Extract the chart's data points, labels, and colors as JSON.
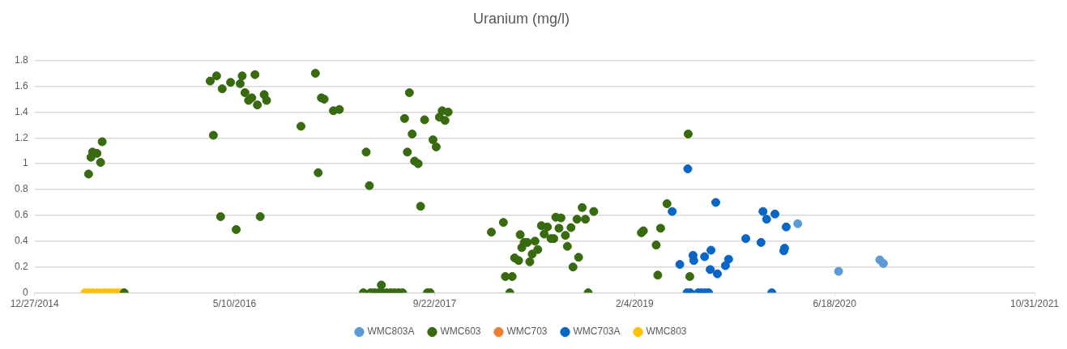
{
  "chart_data": {
    "type": "scatter",
    "title": "Uranium (mg/l)",
    "xlim": [
      "2014-12-27",
      "2021-10-31"
    ],
    "xticks": [
      {
        "value": "2014-12-27",
        "label": "12/27/2014"
      },
      {
        "value": "2016-05-10",
        "label": "5/10/2016"
      },
      {
        "value": "2017-09-22",
        "label": "9/22/2017"
      },
      {
        "value": "2019-02-04",
        "label": "2/4/2019"
      },
      {
        "value": "2020-06-18",
        "label": "6/18/2020"
      },
      {
        "value": "2021-10-31",
        "label": "10/31/2021"
      }
    ],
    "ylim": [
      0,
      1.8
    ],
    "yticks": [
      0,
      0.2,
      0.4,
      0.6,
      0.8,
      1,
      1.2,
      1.4,
      1.6,
      1.8
    ],
    "grid": "y",
    "legend": "bottom",
    "marker": "circle",
    "series": [
      {
        "name": "WMC803A",
        "color": "#5b9bd5",
        "x": [
          "2020-03-18",
          "2020-06-28",
          "2020-10-09",
          "2020-10-18"
        ],
        "values": [
          0.535,
          0.166,
          0.255,
          0.227
        ]
      },
      {
        "name": "WMC603",
        "color": "#386a10",
        "x": [
          "2015-06-14",
          "2015-05-21",
          "2015-06-01",
          "2015-05-17",
          "2015-06-10",
          "2015-05-11",
          "2015-08-08",
          "2016-03-10",
          "2016-03-26",
          "2016-04-09",
          "2016-04-30",
          "2016-05-24",
          "2016-05-29",
          "2016-06-30",
          "2016-06-05",
          "2016-06-22",
          "2016-06-14",
          "2016-07-06",
          "2016-07-23",
          "2016-07-29",
          "2016-03-18",
          "2016-04-05",
          "2016-05-14",
          "2016-07-13",
          "2016-11-28",
          "2016-12-13",
          "2016-12-20",
          "2017-01-12",
          "2017-01-27",
          "2016-10-23",
          "2016-12-05",
          "2017-04-04",
          "2017-04-12",
          "2017-05-12",
          "2017-03-28",
          "2017-04-15",
          "2017-04-25",
          "2017-05-05",
          "2017-05-15",
          "2017-05-25",
          "2017-06-04",
          "2017-06-14",
          "2017-06-24",
          "2017-07-04",
          "2017-09-04",
          "2017-09-11",
          "2017-07-21",
          "2017-07-09",
          "2017-08-28",
          "2017-10-11",
          "2017-10-26",
          "2017-10-04",
          "2017-10-18",
          "2017-07-28",
          "2017-09-18",
          "2017-09-26",
          "2017-07-16",
          "2017-08-03",
          "2017-08-12",
          "2017-08-18",
          "2018-02-11",
          "2018-03-13",
          "2018-04-24",
          "2018-05-04",
          "2018-04-28",
          "2018-05-12",
          "2018-05-31",
          "2018-06-07",
          "2018-05-24",
          "2018-05-18",
          "2018-04-10",
          "2018-04-20",
          "2018-03-18",
          "2018-04-04",
          "2018-03-29",
          "2018-06-16",
          "2018-07-01",
          "2018-06-23",
          "2018-07-10",
          "2018-07-17",
          "2018-07-22",
          "2018-08-04",
          "2018-07-30",
          "2018-08-15",
          "2018-08-29",
          "2018-08-20",
          "2018-09-17",
          "2018-09-03",
          "2018-09-13",
          "2018-10-04",
          "2018-09-26",
          "2018-10-25",
          "2018-10-11",
          "2019-02-21",
          "2019-02-26",
          "2019-04-26",
          "2019-04-10",
          "2019-03-30",
          "2019-04-03",
          "2019-06-18",
          "2019-06-22"
        ],
        "values": [
          1.17,
          1.09,
          1.08,
          1.05,
          1.01,
          0.92,
          0,
          1.64,
          1.68,
          1.58,
          1.63,
          1.62,
          1.68,
          1.69,
          1.55,
          1.51,
          1.49,
          1.455,
          1.535,
          1.49,
          1.22,
          0.59,
          0.49,
          0.59,
          1.7,
          1.51,
          1.5,
          1.41,
          1.42,
          1.29,
          0.93,
          1.09,
          0.83,
          0.06,
          0,
          0,
          0,
          0,
          0,
          0,
          0,
          0,
          0,
          0,
          0,
          0,
          1.55,
          1.35,
          1.34,
          1.41,
          1.4,
          1.36,
          1.335,
          1.23,
          1.185,
          1.13,
          1.09,
          1.02,
          1,
          0.67,
          0.47,
          0.545,
          0.45,
          0.39,
          0.35,
          0.39,
          0.4,
          0.335,
          0.3,
          0.24,
          0.27,
          0.25,
          0.126,
          0.126,
          0,
          0.52,
          0.51,
          0.455,
          0.42,
          0.42,
          0.585,
          0.58,
          0.5,
          0.445,
          0.505,
          0.36,
          0.275,
          0.2,
          0.57,
          0.57,
          0.66,
          0.63,
          0,
          0.465,
          0.48,
          0.69,
          0.5,
          0.37,
          0.137,
          1.23,
          0.126
        ]
      },
      {
        "name": "WMC703",
        "color": "#ed7d31"
      },
      {
        "name": "WMC703A",
        "color": "#0866c6",
        "x": [
          "2019-06-17",
          "2019-05-09",
          "2019-08-26",
          "2019-05-28",
          "2019-06-30",
          "2019-07-02",
          "2019-07-29",
          "2019-08-14",
          "2019-08-12",
          "2019-08-30",
          "2019-09-19",
          "2019-09-27",
          "2019-11-09",
          "2019-12-17",
          "2019-12-22",
          "2019-12-31",
          "2020-01-21",
          "2020-02-18",
          "2020-02-14",
          "2020-02-12",
          "2020-01-13",
          "2019-06-15",
          "2019-06-23",
          "2019-07-13",
          "2019-07-21",
          "2019-07-31",
          "2019-08-08"
        ],
        "values": [
          0.96,
          0.63,
          0.7,
          0.22,
          0.29,
          0.25,
          0.28,
          0.33,
          0.18,
          0.147,
          0.21,
          0.26,
          0.42,
          0.39,
          0.63,
          0.57,
          0.61,
          0.51,
          0.345,
          0.325,
          0,
          0,
          0,
          0,
          0,
          0,
          0
        ]
      },
      {
        "name": "WMC803",
        "color": "#ffc000",
        "x": [
          "2015-05-02",
          "2015-05-12",
          "2015-05-22",
          "2015-06-01",
          "2015-06-11",
          "2015-06-21",
          "2015-07-01",
          "2015-07-11",
          "2015-07-21",
          "2015-07-31"
        ],
        "values": [
          0,
          0,
          0,
          0,
          0,
          0,
          0,
          0,
          0,
          0
        ]
      }
    ]
  }
}
